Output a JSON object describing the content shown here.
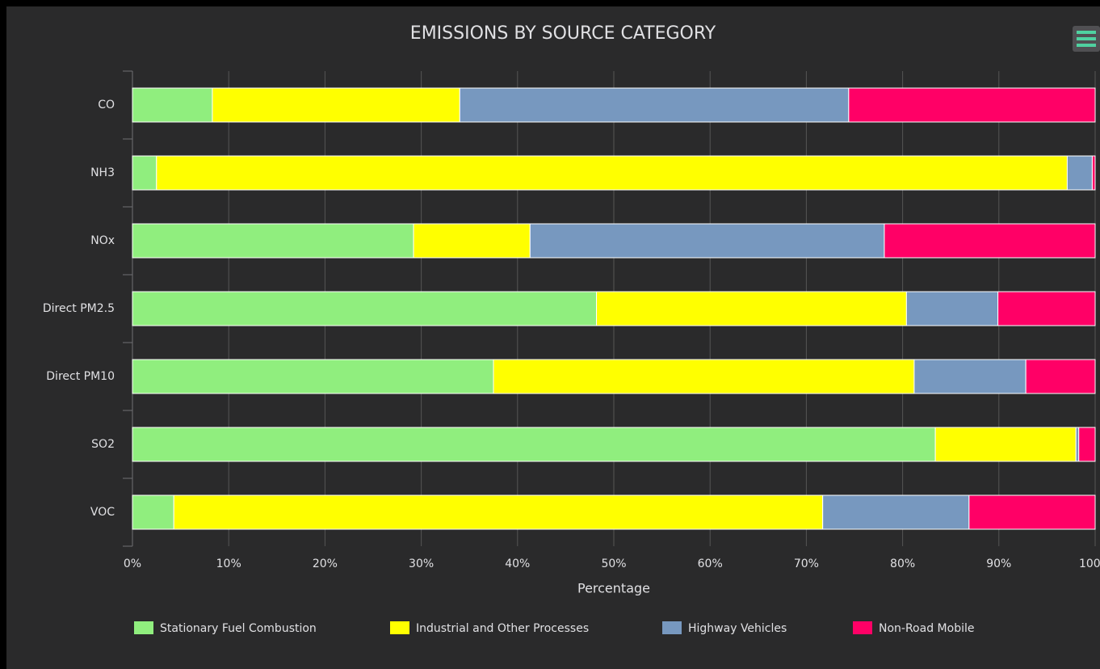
{
  "chart_data": {
    "type": "stacked-bar-horizontal",
    "title": "EMISSIONS BY SOURCE CATEGORY",
    "x_label": "Percentage",
    "categories": [
      "CO",
      "NH3",
      "NOx",
      "Direct PM2.5",
      "Direct PM10",
      "SO2",
      "VOC"
    ],
    "series": [
      {
        "name": "Stationary Fuel Combustion",
        "color": "#90ee7e",
        "values": [
          8.3,
          2.5,
          29.2,
          48.2,
          37.5,
          83.4,
          4.3
        ]
      },
      {
        "name": "Industrial and Other Processes",
        "color": "#ffff00",
        "values": [
          25.7,
          94.6,
          12.1,
          32.2,
          43.7,
          14.6,
          67.4
        ]
      },
      {
        "name": "Highway Vehicles",
        "color": "#7798bf",
        "values": [
          40.4,
          2.6,
          36.8,
          9.5,
          11.6,
          0.3,
          15.2
        ]
      },
      {
        "name": "Non-Road Mobile",
        "color": "#ff0066",
        "values": [
          25.6,
          0.3,
          21.9,
          10.1,
          7.2,
          1.7,
          13.1
        ]
      }
    ],
    "xlim": [
      0,
      100
    ],
    "xticks": [
      {
        "value": 0,
        "label": "0%"
      },
      {
        "value": 10,
        "label": "10%"
      },
      {
        "value": 20,
        "label": "20%"
      },
      {
        "value": 30,
        "label": "30%"
      },
      {
        "value": 40,
        "label": "40%"
      },
      {
        "value": 50,
        "label": "50%"
      },
      {
        "value": 60,
        "label": "60%"
      },
      {
        "value": 70,
        "label": "70%"
      },
      {
        "value": 80,
        "label": "80%"
      },
      {
        "value": 90,
        "label": "90%"
      },
      {
        "value": 100,
        "label": "100%"
      }
    ],
    "grid": true,
    "legend": "bottom"
  }
}
